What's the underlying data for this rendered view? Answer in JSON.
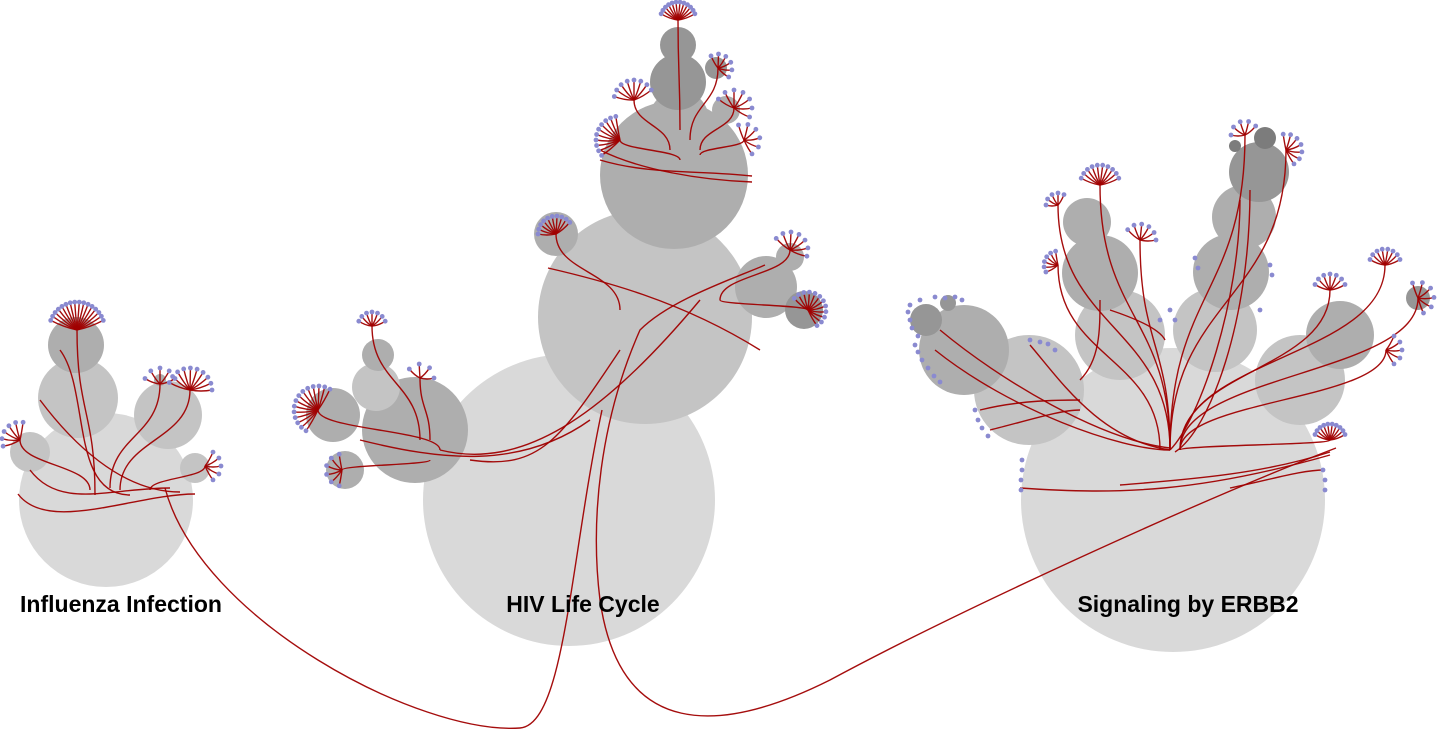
{
  "clusters": [
    {
      "id": "influenza",
      "label": "Influenza Infection"
    },
    {
      "id": "hiv",
      "label": "HIV Life Cycle"
    },
    {
      "id": "erbb2",
      "label": "Signaling by ERBB2"
    }
  ],
  "colors": {
    "edge": "#a00000",
    "leaf_node": "#8a8ad0",
    "circle_levels": [
      "#d9d9d9",
      "#c4c4c4",
      "#aeaeae",
      "#969696",
      "#7c7c7c"
    ],
    "background": "#ffffff"
  }
}
